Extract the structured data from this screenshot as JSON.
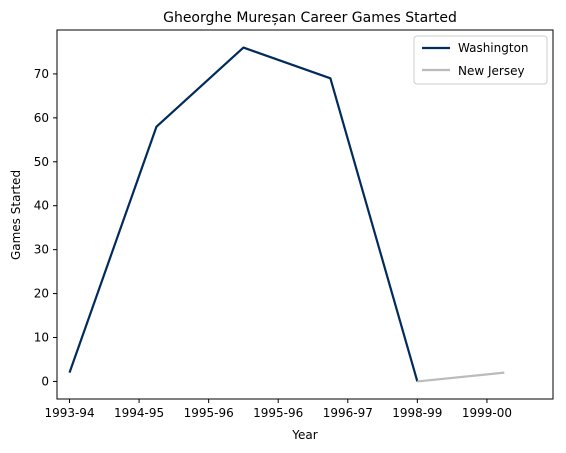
{
  "chart_data": {
    "type": "line",
    "title": "Gheorghe Mureșan Career Games Started",
    "xlabel": "Year",
    "ylabel": "Games Started",
    "x_tick_labels": [
      "1993-94",
      "1994-95",
      "1995-96",
      "1995-96",
      "1996-97",
      "1998-99",
      "1999-00"
    ],
    "xlim": [
      -0.18,
      6.95
    ],
    "ylim": [
      -4,
      80
    ],
    "y_ticks": [
      0,
      10,
      20,
      30,
      40,
      50,
      60,
      70
    ],
    "grid": false,
    "legend_position": "top-right",
    "series": [
      {
        "name": "Washington",
        "color": "#002B5C",
        "x": [
          0,
          1.25,
          2.5,
          3.75,
          5
        ],
        "y": [
          2,
          58,
          76,
          69,
          0
        ]
      },
      {
        "name": "New Jersey",
        "color": "#BBBBBB",
        "x": [
          5,
          6.25
        ],
        "y": [
          0,
          2
        ]
      }
    ]
  }
}
